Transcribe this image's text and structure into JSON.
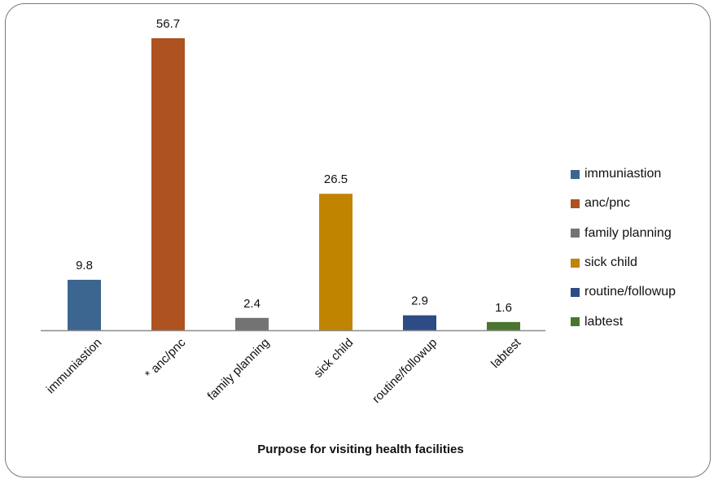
{
  "chart_data": {
    "type": "bar",
    "title": "",
    "xlabel": "Purpose for visiting health facilities",
    "ylabel": "",
    "ylim": [
      0,
      56.7
    ],
    "grid": false,
    "legend_position": "right",
    "categories": [
      "immuniastion",
      "* anc/pnc",
      "family planning",
      "sick child",
      "routine/followup",
      "labtest"
    ],
    "values": [
      9.8,
      56.7,
      2.4,
      26.5,
      2.9,
      1.6
    ],
    "data_labels": [
      "9.8",
      "56.7",
      "2.4",
      "26.5",
      "2.9",
      "1.6"
    ],
    "colors": [
      "#3c6690",
      "#ad5220",
      "#737373",
      "#c08400",
      "#2d4b85",
      "#4a7530"
    ],
    "legend": [
      {
        "label": "immuniastion",
        "color": "#3c6690"
      },
      {
        "label": "anc/pnc",
        "color": "#ad5220"
      },
      {
        "label": "family planning",
        "color": "#737373"
      },
      {
        "label": "sick child",
        "color": "#c08400"
      },
      {
        "label": "routine/followup",
        "color": "#2d4b85"
      },
      {
        "label": "labtest",
        "color": "#4a7530"
      }
    ]
  }
}
